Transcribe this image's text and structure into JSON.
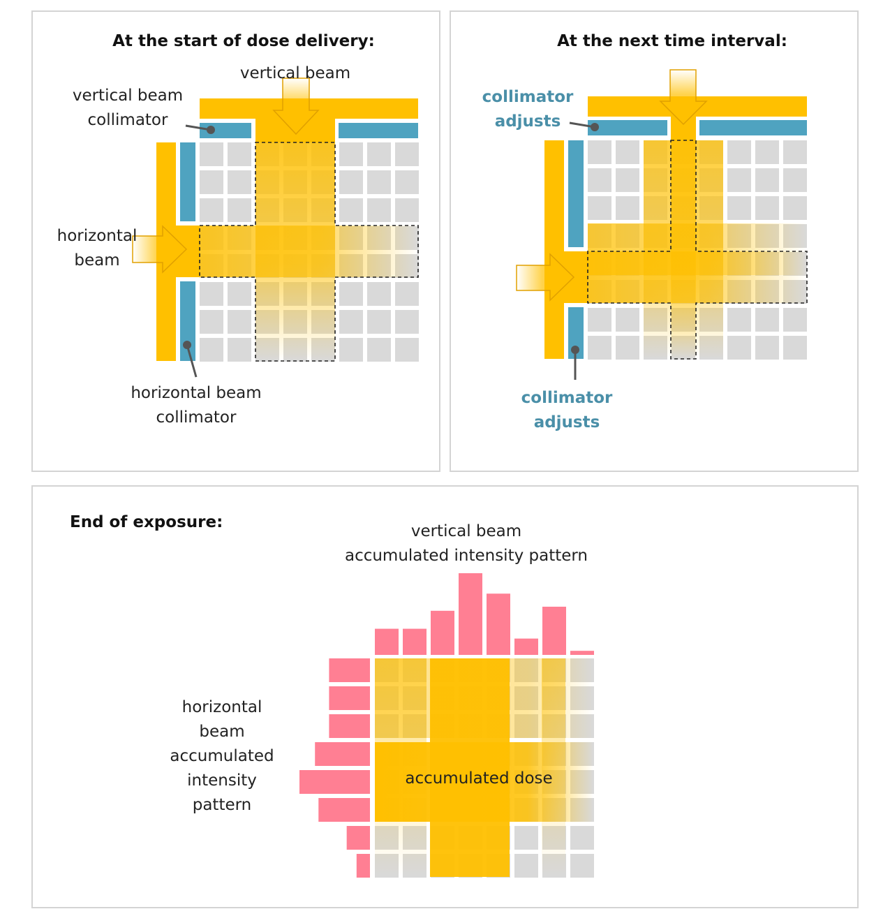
{
  "colors": {
    "beam": "#ffc000",
    "collimator": "#4fa3c0",
    "cell": "#d9d9d9",
    "profile": "#ff7f93",
    "panel_border": "#d4d4d4",
    "blue_text": "#4a8fa8"
  },
  "panel1": {
    "title": "At the start of dose delivery:",
    "vertical_beam": "vertical beam",
    "vertical_collimator": [
      "vertical beam",
      "collimator"
    ],
    "horizontal_beam": [
      "horizontal",
      "beam"
    ],
    "horizontal_collimator": [
      "horizontal beam",
      "collimator"
    ]
  },
  "panel2": {
    "title": "At the next time interval:",
    "collimator_adjusts_top": [
      "collimator",
      "adjusts"
    ],
    "collimator_adjusts_bottom": [
      "collimator",
      "adjusts"
    ]
  },
  "panel3": {
    "title": "End of exposure:",
    "vertical_pattern": [
      "vertical beam",
      "accumulated intensity pattern"
    ],
    "horizontal_pattern": [
      "horizontal",
      "beam",
      "accumulated",
      "intensity",
      "pattern"
    ],
    "dose_label": "accumulated dose",
    "column_profile": [
      0.32,
      0.32,
      0.54,
      1.0,
      0.75,
      0.2,
      0.59,
      0.05
    ],
    "row_profile": [
      0.58,
      0.58,
      0.58,
      0.78,
      1.0,
      0.73,
      0.33,
      0.19
    ]
  }
}
